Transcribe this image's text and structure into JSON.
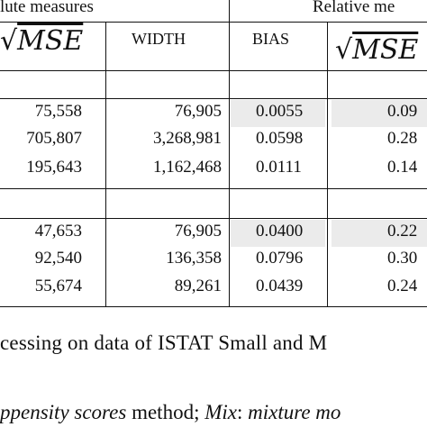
{
  "header": {
    "absolute_group": "lute measures",
    "relative_group": "Relative me"
  },
  "columns": {
    "mse": "MSE",
    "width": "WIDTH",
    "bias": "BIAS",
    "mse_rel": "MSE"
  },
  "groups": [
    {
      "rows": [
        {
          "mse": "75,558",
          "width": "76,905",
          "bias": "0.0055",
          "rel": "0.09"
        },
        {
          "mse": "705,807",
          "width": "3,268,981",
          "bias": "0.0598",
          "rel": "0.28"
        },
        {
          "mse": "195,643",
          "width": "1,162,468",
          "bias": "0.0111",
          "rel": "0.14"
        }
      ]
    },
    {
      "rows": [
        {
          "mse": "47,653",
          "width": "76,905",
          "bias": "0.0400",
          "rel": "0.22"
        },
        {
          "mse": "92,540",
          "width": "136,358",
          "bias": "0.0796",
          "rel": "0.30"
        },
        {
          "mse": "55,674",
          "width": "89,261",
          "bias": "0.0439",
          "rel": "0.24"
        }
      ]
    }
  ],
  "caption": "cessing on data of ISTAT Small and M",
  "footnote": {
    "part1": "ppensity scores",
    "part2": " method; ",
    "part3": "Mix",
    "part4": ": ",
    "part5": "mixture mo"
  }
}
